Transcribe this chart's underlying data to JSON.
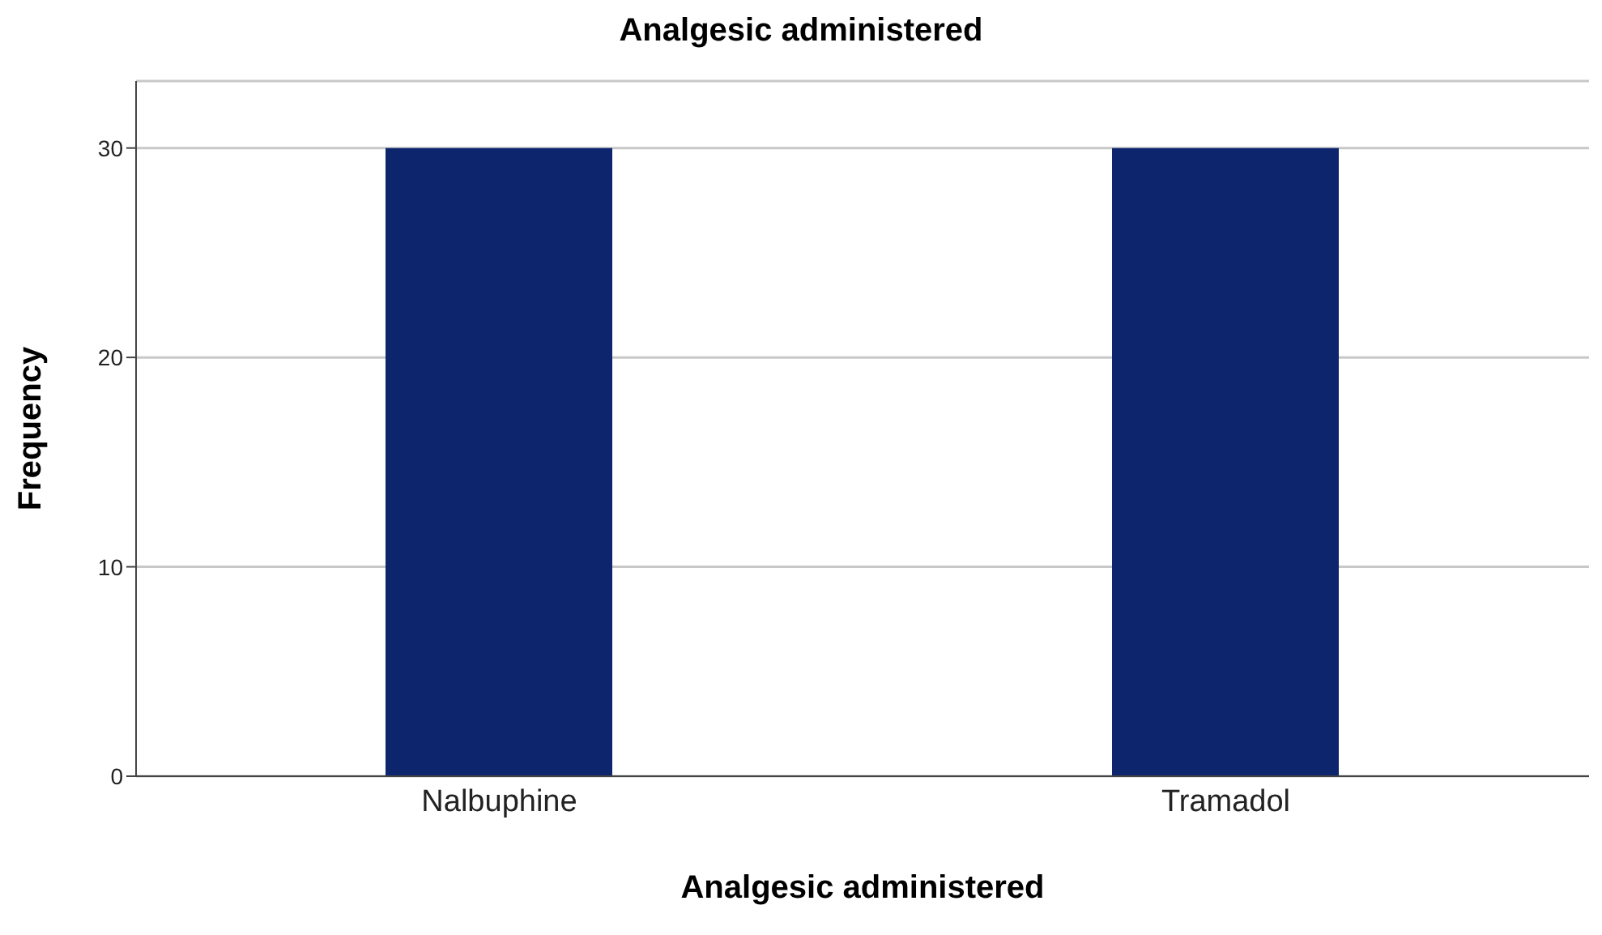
{
  "chart_data": {
    "type": "bar",
    "title": "Analgesic administered",
    "xlabel": "Analgesic administered",
    "ylabel": "Frequency",
    "categories": [
      "Nalbuphine",
      "Tramadol"
    ],
    "values": [
      30,
      30
    ],
    "color": "#0c256d",
    "ylim": [
      0,
      33.2
    ],
    "yticks": [
      0,
      10,
      20,
      30
    ],
    "grid": "y"
  }
}
